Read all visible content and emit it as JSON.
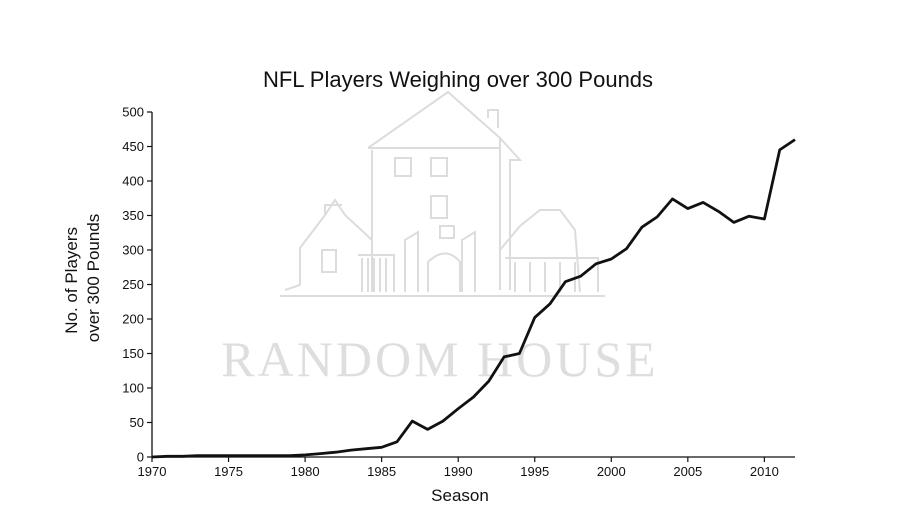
{
  "chart_data": {
    "type": "line",
    "title": "NFL Players Weighing over 300 Pounds",
    "xlabel": "Season",
    "ylabel": [
      "No. of Players",
      "over 300 Pounds"
    ],
    "xlim": [
      1970,
      2012
    ],
    "ylim": [
      0,
      500
    ],
    "xticks": [
      1970,
      1975,
      1980,
      1985,
      1990,
      1995,
      2000,
      2005,
      2010
    ],
    "yticks": [
      0,
      50,
      100,
      150,
      200,
      250,
      300,
      350,
      400,
      450,
      500
    ],
    "grid": false,
    "series": [
      {
        "x": [
          1970,
          1971,
          1972,
          1973,
          1974,
          1975,
          1976,
          1977,
          1978,
          1979,
          1980,
          1981,
          1982,
          1983,
          1984,
          1985,
          1986,
          1987,
          1988,
          1989,
          1990,
          1991,
          1992,
          1993,
          1994,
          1995,
          1996,
          1997,
          1998,
          1999,
          2000,
          2001,
          2002,
          2003,
          2004,
          2005,
          2006,
          2007,
          2008,
          2009,
          2010,
          2011,
          2012
        ],
        "y": [
          0,
          1,
          1,
          2,
          2,
          2,
          2,
          2,
          2,
          2,
          3,
          5,
          7,
          10,
          12,
          14,
          22,
          52,
          40,
          52,
          70,
          87,
          110,
          145,
          150,
          202,
          222,
          254,
          262,
          280,
          287,
          302,
          333,
          348,
          374,
          360,
          369,
          356,
          340,
          349,
          345,
          445,
          460
        ]
      }
    ]
  },
  "watermark": {
    "text": "RANDOM HOUSE"
  }
}
